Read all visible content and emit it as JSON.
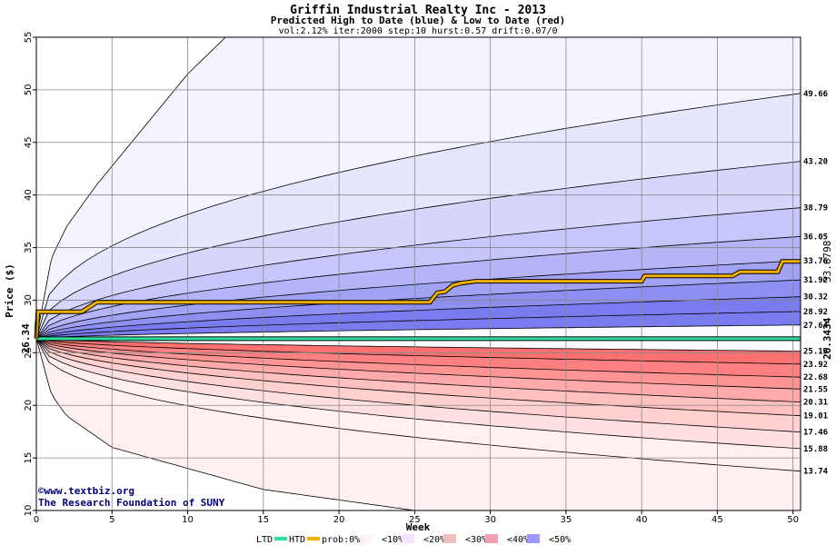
{
  "chart_data": {
    "type": "area",
    "title": "Griffin Industrial Realty Inc - 2013",
    "subtitle": "Predicted High to Date (blue) &  Low to Date (red)",
    "params": "vol:2.12% iter:2000 step:10 hurst:0.57 drift:0.07/0",
    "xlabel": "Week",
    "ylabel": "Price ($)",
    "xlim": [
      0,
      50.5
    ],
    "ylim": [
      10,
      55
    ],
    "x_ticks": [
      "0",
      "5",
      "10",
      "15",
      "20",
      "25",
      "30",
      "35",
      "40",
      "45",
      "50"
    ],
    "y_ticks": [
      "10",
      "15",
      "20",
      "25",
      "30",
      "35",
      "40",
      "45",
      "50",
      "55"
    ],
    "start_price": "26.34",
    "start_value": 26.34,
    "high_bands": [
      {
        "label": "49.66",
        "end": 49.66,
        "shape": 0.42
      },
      {
        "label": "43.20",
        "end": 43.2,
        "shape": 0.45
      },
      {
        "label": "38.79",
        "end": 38.79,
        "shape": 0.48
      },
      {
        "label": "36.05",
        "end": 36.05,
        "shape": 0.5
      },
      {
        "label": "33.76",
        "end": 33.76,
        "shape": 0.52
      },
      {
        "label": "31.92",
        "end": 31.92,
        "shape": 0.54
      },
      {
        "label": "30.32",
        "end": 30.32,
        "shape": 0.56
      },
      {
        "label": "28.92",
        "end": 28.92,
        "shape": 0.58
      },
      {
        "label": "27.64",
        "end": 27.64,
        "shape": 0.6
      }
    ],
    "low_bands": [
      {
        "label": "25.15",
        "end": 25.15,
        "shape": 0.6
      },
      {
        "label": "23.92",
        "end": 23.92,
        "shape": 0.58
      },
      {
        "label": "22.68",
        "end": 22.68,
        "shape": 0.56
      },
      {
        "label": "21.55",
        "end": 21.55,
        "shape": 0.54
      },
      {
        "label": "20.31",
        "end": 20.31,
        "shape": 0.52
      },
      {
        "label": "19.01",
        "end": 19.01,
        "shape": 0.5
      },
      {
        "label": "17.46",
        "end": 17.46,
        "shape": 0.48
      },
      {
        "label": "15.88",
        "end": 15.88,
        "shape": 0.45
      },
      {
        "label": "13.74",
        "end": 13.74,
        "shape": 0.42
      }
    ],
    "outer_high_line": {
      "x": [
        0,
        1,
        2,
        4,
        6,
        8,
        10,
        12.5
      ],
      "y": [
        26.34,
        34,
        37,
        41,
        44.5,
        48,
        51.5,
        55
      ]
    },
    "outer_low_line": {
      "x": [
        0,
        1,
        2,
        5,
        10,
        15,
        20,
        25
      ],
      "y": [
        26.34,
        21,
        19,
        16,
        14,
        12,
        11,
        10
      ]
    },
    "htd_series": {
      "name": "HTD",
      "x": [
        0,
        0.1,
        3,
        4,
        26,
        26.5,
        27,
        27.5,
        28,
        29,
        40,
        40.2,
        46,
        46.5,
        49,
        49.3,
        50.5
      ],
      "y": [
        26.34,
        28.9,
        28.9,
        29.8,
        29.8,
        30.7,
        30.8,
        31.4,
        31.6,
        31.8,
        31.8,
        32.3,
        32.3,
        32.7,
        32.7,
        33.68,
        33.68
      ]
    },
    "ltd_series": {
      "name": "LTD",
      "value": 26.34
    },
    "htd_label": "33.6798",
    "ltd_label": "26.3434",
    "htd_label_value": 33.6798,
    "ltd_label_value": 26.3434,
    "credit_line1": "©www.textbiz.org",
    "credit_line2": "The Research Foundation of SUNY",
    "legend": {
      "ltd": "LTD",
      "htd": "HTD",
      "prob": "prob:0%",
      "items": [
        "<10%",
        "<20%",
        "<30%",
        "<40%",
        "<50%"
      ]
    },
    "colors": {
      "htd": "#f0b000",
      "ltd": "#30e0a0",
      "high_fills": [
        "#f4f4ff",
        "#e6e6ff",
        "#d6d6fc",
        "#c6c6fa",
        "#b4b4f7",
        "#a2a2f5",
        "#8f8ff2",
        "#7b7bf0"
      ],
      "low_fills": [
        "#fff0f0",
        "#ffe0e0",
        "#ffd0d0",
        "#ffc0c0",
        "#ffaaaa",
        "#ff9494",
        "#ff8080",
        "#ff7070"
      ],
      "legend_fills": [
        "#ffffff",
        "#fff4f4",
        "#f4e4ff",
        "#f0c0c0",
        "#f0a0b0",
        "#9a9aff"
      ]
    }
  }
}
